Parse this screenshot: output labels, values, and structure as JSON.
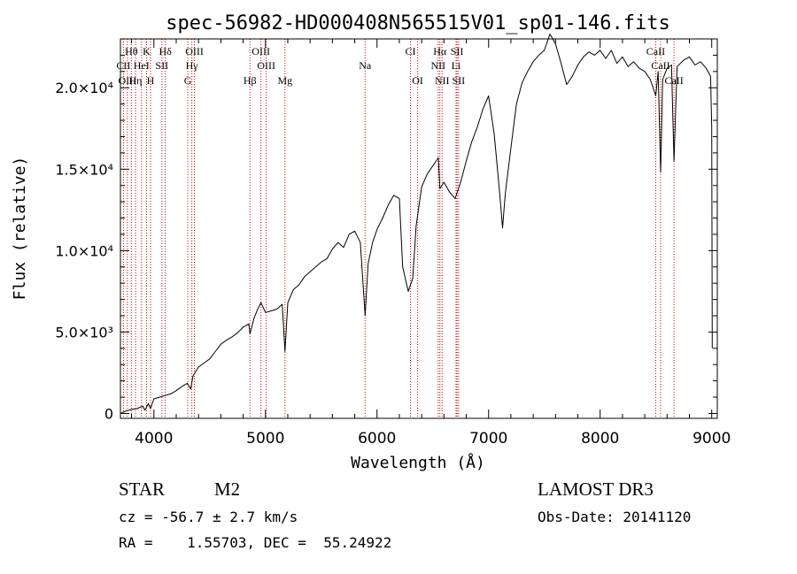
{
  "chart_data": {
    "type": "line",
    "title": "spec-56982-HD000408N565515V01_sp01-146.fits",
    "xlabel": "Wavelength (Å)",
    "ylabel": "Flux (relative)",
    "xlim": [
      3700,
      9050
    ],
    "ylim": [
      -300,
      23000
    ],
    "x_ticks": [
      {
        "value": 4000,
        "label": "4000"
      },
      {
        "value": 5000,
        "label": "5000"
      },
      {
        "value": 6000,
        "label": "6000"
      },
      {
        "value": 7000,
        "label": "7000"
      },
      {
        "value": 8000,
        "label": "8000"
      },
      {
        "value": 9000,
        "label": "9000"
      }
    ],
    "y_ticks": [
      {
        "value": 0,
        "label": "0"
      },
      {
        "value": 5000,
        "label": "5.0×10³"
      },
      {
        "value": 10000,
        "label": "1.0×10⁴"
      },
      {
        "value": 15000,
        "label": "1.5×10⁴"
      },
      {
        "value": 20000,
        "label": "2.0×10⁴"
      }
    ],
    "series": [
      {
        "name": "flux",
        "color": "#000000",
        "points": [
          [
            3700,
            0
          ],
          [
            3750,
            150
          ],
          [
            3800,
            250
          ],
          [
            3850,
            300
          ],
          [
            3900,
            450
          ],
          [
            3920,
            200
          ],
          [
            3950,
            600
          ],
          [
            3970,
            300
          ],
          [
            4000,
            900
          ],
          [
            4050,
            1000
          ],
          [
            4100,
            1100
          ],
          [
            4150,
            1200
          ],
          [
            4200,
            1400
          ],
          [
            4250,
            1650
          ],
          [
            4300,
            1850
          ],
          [
            4330,
            1500
          ],
          [
            4350,
            2300
          ],
          [
            4400,
            2850
          ],
          [
            4450,
            3100
          ],
          [
            4500,
            3350
          ],
          [
            4550,
            3800
          ],
          [
            4600,
            4250
          ],
          [
            4650,
            4500
          ],
          [
            4700,
            4700
          ],
          [
            4750,
            4950
          ],
          [
            4800,
            5300
          ],
          [
            4850,
            5500
          ],
          [
            4861,
            4900
          ],
          [
            4900,
            5900
          ],
          [
            4930,
            6400
          ],
          [
            4960,
            6800
          ],
          [
            5000,
            6200
          ],
          [
            5050,
            6300
          ],
          [
            5100,
            6400
          ],
          [
            5150,
            6700
          ],
          [
            5175,
            3800
          ],
          [
            5200,
            6800
          ],
          [
            5250,
            7600
          ],
          [
            5300,
            7900
          ],
          [
            5350,
            8400
          ],
          [
            5400,
            8700
          ],
          [
            5450,
            9000
          ],
          [
            5500,
            9300
          ],
          [
            5550,
            9500
          ],
          [
            5600,
            10100
          ],
          [
            5650,
            10500
          ],
          [
            5700,
            10200
          ],
          [
            5750,
            11000
          ],
          [
            5800,
            11200
          ],
          [
            5850,
            10500
          ],
          [
            5893,
            6000
          ],
          [
            5920,
            9200
          ],
          [
            5960,
            10500
          ],
          [
            6000,
            11300
          ],
          [
            6050,
            12000
          ],
          [
            6100,
            12800
          ],
          [
            6150,
            13400
          ],
          [
            6200,
            13200
          ],
          [
            6230,
            9000
          ],
          [
            6280,
            7500
          ],
          [
            6320,
            8300
          ],
          [
            6350,
            11500
          ],
          [
            6400,
            13900
          ],
          [
            6450,
            14700
          ],
          [
            6500,
            15200
          ],
          [
            6550,
            15700
          ],
          [
            6563,
            13800
          ],
          [
            6600,
            14200
          ],
          [
            6650,
            13600
          ],
          [
            6700,
            13200
          ],
          [
            6750,
            14200
          ],
          [
            6800,
            15500
          ],
          [
            6850,
            16700
          ],
          [
            6900,
            17600
          ],
          [
            6950,
            18700
          ],
          [
            7000,
            19500
          ],
          [
            7050,
            17200
          ],
          [
            7100,
            13500
          ],
          [
            7125,
            11400
          ],
          [
            7150,
            13500
          ],
          [
            7200,
            16300
          ],
          [
            7250,
            19000
          ],
          [
            7300,
            20300
          ],
          [
            7350,
            21000
          ],
          [
            7400,
            21600
          ],
          [
            7450,
            22000
          ],
          [
            7500,
            22300
          ],
          [
            7550,
            23300
          ],
          [
            7600,
            22700
          ],
          [
            7650,
            21500
          ],
          [
            7700,
            20200
          ],
          [
            7750,
            20700
          ],
          [
            7800,
            21400
          ],
          [
            7850,
            21900
          ],
          [
            7900,
            22200
          ],
          [
            7950,
            22000
          ],
          [
            8000,
            22300
          ],
          [
            8050,
            21800
          ],
          [
            8100,
            22300
          ],
          [
            8150,
            21500
          ],
          [
            8200,
            21900
          ],
          [
            8250,
            21300
          ],
          [
            8300,
            21600
          ],
          [
            8350,
            21200
          ],
          [
            8400,
            21000
          ],
          [
            8450,
            20500
          ],
          [
            8498,
            19500
          ],
          [
            8520,
            21000
          ],
          [
            8542,
            14800
          ],
          [
            8560,
            20500
          ],
          [
            8600,
            21200
          ],
          [
            8640,
            21400
          ],
          [
            8662,
            15500
          ],
          [
            8690,
            21300
          ],
          [
            8750,
            21700
          ],
          [
            8800,
            21900
          ],
          [
            8850,
            21400
          ],
          [
            8900,
            21600
          ],
          [
            8950,
            21200
          ],
          [
            8990,
            20700
          ],
          [
            9000,
            17600
          ],
          [
            9005,
            4000
          ]
        ]
      }
    ],
    "line_markers": [
      {
        "name": "Hθ",
        "wavelength": 3798,
        "row": 1
      },
      {
        "name": "K",
        "wavelength": 3934,
        "row": 1
      },
      {
        "name": "Hδ",
        "wavelength": 4102,
        "row": 1
      },
      {
        "name": "OIII",
        "wavelength": 4363,
        "row": 1
      },
      {
        "name": "OIII",
        "wavelength": 4959,
        "row": 1
      },
      {
        "name": "CI",
        "wavelength": 6300,
        "row": 1
      },
      {
        "name": "Hα",
        "wavelength": 6563,
        "row": 1
      },
      {
        "name": "SII",
        "wavelength": 6717,
        "row": 1
      },
      {
        "name": "CaII",
        "wavelength": 8498,
        "row": 1
      },
      {
        "name": "CII",
        "wavelength": 3727,
        "row": 2
      },
      {
        "name": "HeI",
        "wavelength": 3889,
        "row": 2
      },
      {
        "name": "SII",
        "wavelength": 4072,
        "row": 2
      },
      {
        "name": "Hγ",
        "wavelength": 4340,
        "row": 2
      },
      {
        "name": "OIII",
        "wavelength": 5007,
        "row": 2
      },
      {
        "name": "Na",
        "wavelength": 5893,
        "row": 2
      },
      {
        "name": "NII",
        "wavelength": 6548,
        "row": 2
      },
      {
        "name": "Li",
        "wavelength": 6708,
        "row": 2
      },
      {
        "name": "CaII",
        "wavelength": 8542,
        "row": 2
      },
      {
        "name": "OIII",
        "wavelength": 3762,
        "row": 3
      },
      {
        "name": "Hη",
        "wavelength": 3835,
        "row": 3
      },
      {
        "name": "H",
        "wavelength": 3970,
        "row": 3
      },
      {
        "name": "G",
        "wavelength": 4304,
        "row": 3
      },
      {
        "name": "Hβ",
        "wavelength": 4861,
        "row": 3
      },
      {
        "name": "Mg",
        "wavelength": 5175,
        "row": 3
      },
      {
        "name": "OI",
        "wavelength": 6364,
        "row": 3
      },
      {
        "name": "NII",
        "wavelength": 6583,
        "row": 3
      },
      {
        "name": "SII",
        "wavelength": 6731,
        "row": 3
      },
      {
        "name": "CaII",
        "wavelength": 8662,
        "row": 3
      }
    ],
    "info": {
      "class": "STAR",
      "subclass": "M2",
      "survey": "LAMOST DR3",
      "redshift": "cz = -56.7 ± 2.7 km/s",
      "obs_date": "Obs-Date: 20141120",
      "coords": "RA =    1.55703, DEC =  55.24922"
    },
    "colors": {
      "spectrum": "#000000",
      "marker_line": "#cc0000",
      "axis": "#000000"
    }
  }
}
